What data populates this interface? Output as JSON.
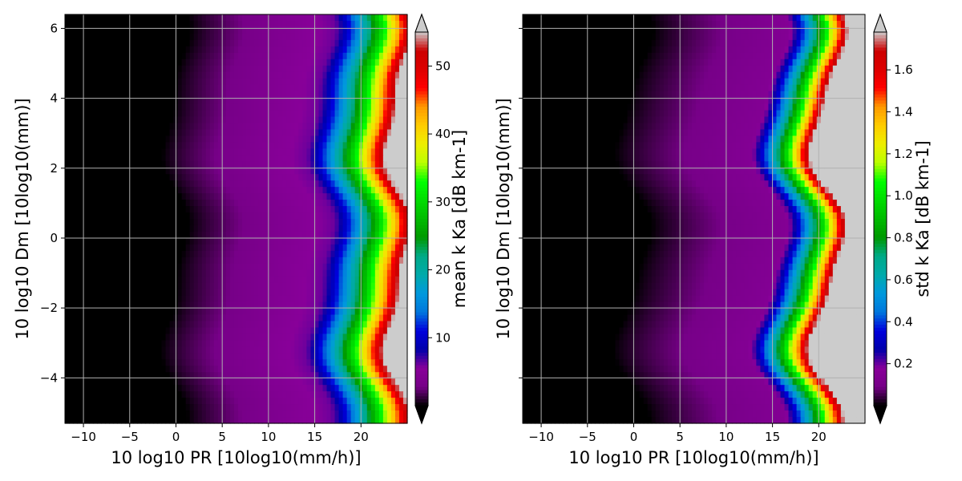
{
  "chart_data": [
    {
      "type": "heatmap",
      "xlabel": "10 log10 PR [10log10(mm/h)]",
      "ylabel": "10 log10 Dm [10log10(mm)]",
      "xlim": [
        -12,
        25
      ],
      "ylim": [
        -5.3,
        6.4
      ],
      "x_ticks": [
        -10,
        -5,
        0,
        5,
        10,
        15,
        20
      ],
      "y_ticks": [
        -4,
        -2,
        0,
        2,
        4,
        6
      ],
      "show_y_tick_labels": true,
      "grid": true,
      "colorbar": {
        "label": "mean k Ka [dB km-1]",
        "range": [
          0,
          55
        ],
        "ticks": [
          10,
          20,
          30,
          40,
          50
        ],
        "extend": "both",
        "colormap": "nipy_spectral",
        "under_color": "#000000",
        "over_color": "#cccccc"
      },
      "field": {
        "signal_start_x": 0,
        "mid_field_x": 15.5,
        "peak_x": 24,
        "wave_amplitude_x": 1.2,
        "mid_field_value": 6,
        "peak_value": 55
      }
    },
    {
      "type": "heatmap",
      "xlabel": "10 log10 PR [10log10(mm/h)]",
      "ylabel": "10 log10 Dm [10log10(mm)]",
      "xlim": [
        -12,
        25
      ],
      "ylim": [
        -5.3,
        6.4
      ],
      "x_ticks": [
        -10,
        -5,
        0,
        5,
        10,
        15,
        20
      ],
      "y_ticks": [
        -4,
        -2,
        0,
        2,
        4,
        6
      ],
      "show_y_tick_labels": false,
      "grid": true,
      "colorbar": {
        "label": "std k Ka [dB km-1]",
        "range": [
          0,
          1.78
        ],
        "ticks": [
          0.2,
          0.4,
          0.6,
          0.8,
          1.0,
          1.2,
          1.4,
          1.6
        ],
        "extend": "both",
        "colormap": "nipy_spectral",
        "under_color": "#000000",
        "over_color": "#cccccc"
      },
      "field": {
        "signal_start_x": 0,
        "mid_field_x": 14.5,
        "peak_x": 21,
        "wave_amplitude_x": 1.8,
        "mid_field_value": 0.15,
        "peak_value": 1.78
      }
    }
  ]
}
